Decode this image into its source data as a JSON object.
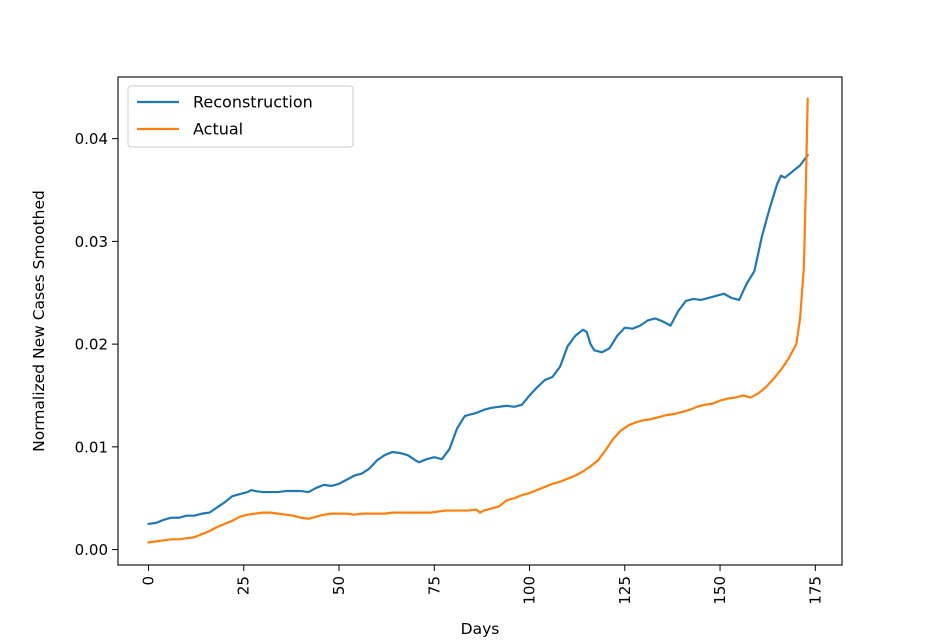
{
  "chart_data": {
    "type": "line",
    "title": "",
    "xlabel": "Days",
    "ylabel": "Normalized New Cases Smoothed",
    "xlim": [
      -8,
      182
    ],
    "ylim": [
      -0.0015,
      0.046
    ],
    "x_ticks": [
      0,
      25,
      50,
      75,
      100,
      125,
      150,
      175
    ],
    "x_tick_labels": [
      "0",
      "25",
      "50",
      "75",
      "100",
      "125",
      "150",
      "175"
    ],
    "y_ticks": [
      0.0,
      0.01,
      0.02,
      0.03,
      0.04
    ],
    "y_tick_labels": [
      "0.00",
      "0.01",
      "0.02",
      "0.03",
      "0.04"
    ],
    "grid": false,
    "legend_position": "top-left",
    "series": [
      {
        "name": "Reconstruction",
        "color": "#1f77b4",
        "x": [
          0,
          2,
          4,
          6,
          8,
          10,
          12,
          14,
          16,
          18,
          20,
          22,
          24,
          26,
          27,
          28,
          30,
          32,
          34,
          36,
          38,
          40,
          42,
          44,
          46,
          48,
          50,
          52,
          54,
          56,
          58,
          60,
          62,
          64,
          66,
          68,
          70,
          71,
          73,
          75,
          77,
          79,
          81,
          83,
          84,
          86,
          88,
          90,
          92,
          94,
          96,
          98,
          100,
          102,
          104,
          106,
          108,
          110,
          112,
          114,
          115,
          116,
          117,
          119,
          121,
          123,
          125,
          127,
          129,
          131,
          133,
          135,
          137,
          139,
          141,
          143,
          145,
          147,
          149,
          151,
          153,
          155,
          157,
          159,
          161,
          163,
          165,
          166,
          167,
          169,
          171,
          173
        ],
        "y": [
          0.0025,
          0.0026,
          0.0029,
          0.0031,
          0.0031,
          0.0033,
          0.0033,
          0.0035,
          0.0036,
          0.0041,
          0.0046,
          0.0052,
          0.0054,
          0.0056,
          0.0058,
          0.0057,
          0.0056,
          0.0056,
          0.0056,
          0.0057,
          0.0057,
          0.0057,
          0.0056,
          0.006,
          0.0063,
          0.0062,
          0.0064,
          0.0068,
          0.0072,
          0.0074,
          0.0079,
          0.0087,
          0.0092,
          0.0095,
          0.0094,
          0.0092,
          0.0087,
          0.0085,
          0.0088,
          0.009,
          0.0088,
          0.0098,
          0.0118,
          0.013,
          0.0131,
          0.0133,
          0.0136,
          0.0138,
          0.0139,
          0.014,
          0.0139,
          0.0141,
          0.015,
          0.0158,
          0.0165,
          0.0168,
          0.0178,
          0.0198,
          0.0208,
          0.0214,
          0.0212,
          0.02,
          0.0194,
          0.0192,
          0.0196,
          0.0208,
          0.0216,
          0.0215,
          0.0218,
          0.0223,
          0.0225,
          0.0222,
          0.0218,
          0.0232,
          0.0242,
          0.0244,
          0.0243,
          0.0245,
          0.0247,
          0.0249,
          0.0245,
          0.0243,
          0.0259,
          0.0271,
          0.0305,
          0.0332,
          0.0356,
          0.0364,
          0.0362,
          0.0368,
          0.0374,
          0.0384
        ]
      },
      {
        "name": "Actual",
        "color": "#ff7f0e",
        "x": [
          0,
          2,
          4,
          6,
          8,
          10,
          12,
          14,
          16,
          18,
          20,
          22,
          24,
          26,
          28,
          30,
          32,
          34,
          36,
          38,
          40,
          42,
          44,
          46,
          48,
          50,
          52,
          54,
          56,
          58,
          60,
          62,
          64,
          66,
          68,
          70,
          72,
          74,
          76,
          78,
          80,
          82,
          84,
          86,
          87,
          88,
          90,
          92,
          94,
          96,
          98,
          100,
          102,
          104,
          106,
          108,
          110,
          112,
          114,
          116,
          118,
          120,
          122,
          124,
          126,
          128,
          130,
          132,
          134,
          136,
          138,
          140,
          142,
          144,
          146,
          148,
          150,
          152,
          154,
          156,
          158,
          160,
          162,
          164,
          166,
          168,
          170,
          171,
          172,
          172.5,
          173
        ],
        "y": [
          0.0007,
          0.0008,
          0.0009,
          0.001,
          0.001,
          0.0011,
          0.0012,
          0.0015,
          0.0018,
          0.0022,
          0.0025,
          0.0028,
          0.0032,
          0.0034,
          0.0035,
          0.0036,
          0.0036,
          0.0035,
          0.0034,
          0.0033,
          0.0031,
          0.003,
          0.0032,
          0.0034,
          0.0035,
          0.0035,
          0.0035,
          0.0034,
          0.0035,
          0.0035,
          0.0035,
          0.0035,
          0.0036,
          0.0036,
          0.0036,
          0.0036,
          0.0036,
          0.0036,
          0.0037,
          0.0038,
          0.0038,
          0.0038,
          0.0038,
          0.0039,
          0.0036,
          0.0038,
          0.004,
          0.0042,
          0.0048,
          0.005,
          0.0053,
          0.0055,
          0.0058,
          0.0061,
          0.0064,
          0.0066,
          0.0069,
          0.0072,
          0.0076,
          0.0081,
          0.0087,
          0.0097,
          0.0108,
          0.0116,
          0.0121,
          0.0124,
          0.0126,
          0.0127,
          0.0129,
          0.0131,
          0.0132,
          0.0134,
          0.0136,
          0.0139,
          0.0141,
          0.0142,
          0.0145,
          0.0147,
          0.0148,
          0.015,
          0.0148,
          0.0152,
          0.0158,
          0.0166,
          0.0175,
          0.0186,
          0.02,
          0.0225,
          0.0275,
          0.035,
          0.0439
        ]
      }
    ]
  }
}
